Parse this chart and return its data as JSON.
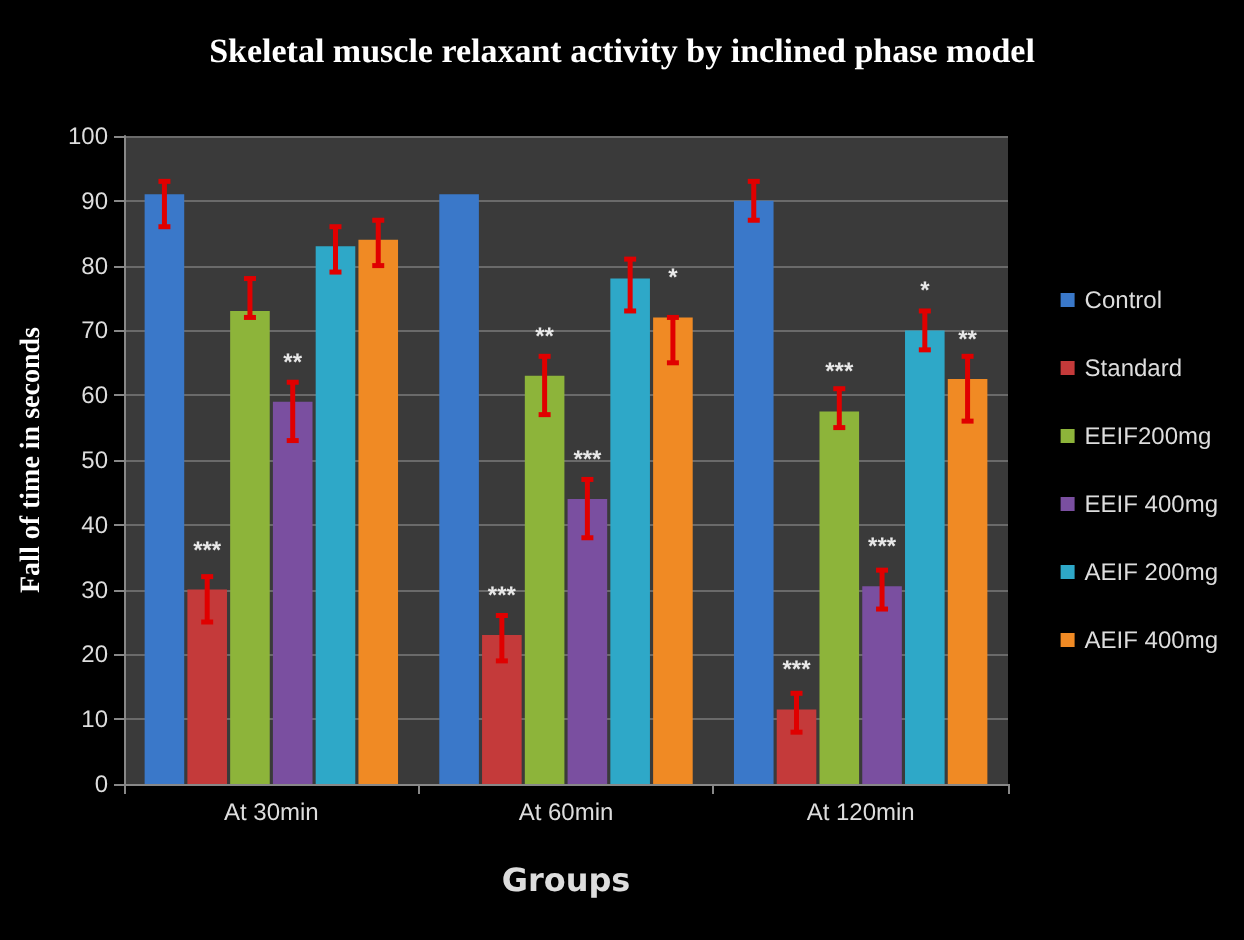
{
  "chart_data": {
    "type": "bar",
    "title": "Skeletal muscle relaxant activity by inclined phase model",
    "xlabel": "Groups",
    "ylabel": "Fall of time in seconds",
    "categories": [
      "At 30min",
      "At 60min",
      "At 120min"
    ],
    "series": [
      {
        "name": "Control",
        "color": "#3a78c9",
        "values": [
          91,
          91,
          90
        ],
        "errors": [
          [
            86,
            93
          ],
          null,
          [
            87,
            93
          ]
        ]
      },
      {
        "name": "Standard",
        "color": "#c43a3a",
        "values": [
          30,
          23,
          11.5
        ],
        "errors": [
          [
            25,
            32
          ],
          [
            19,
            26
          ],
          [
            8,
            14
          ]
        ],
        "value_labels": [
          "***",
          "***",
          "***"
        ]
      },
      {
        "name": "EEIF200mg",
        "color": "#8db43a",
        "values": [
          73,
          63,
          57.5
        ],
        "errors": [
          [
            72,
            78
          ],
          [
            57,
            66
          ],
          [
            55,
            61
          ]
        ],
        "value_labels": [
          null,
          "**",
          "***"
        ]
      },
      {
        "name": "EEIF 400mg",
        "color": "#7a4fa0",
        "values": [
          59,
          44,
          30.5
        ],
        "errors": [
          [
            53,
            62
          ],
          [
            38,
            47
          ],
          [
            27,
            33
          ]
        ],
        "value_labels": [
          "**",
          "***",
          "***"
        ]
      },
      {
        "name": "AEIF 200mg",
        "color": "#2ea8c8",
        "values": [
          83,
          78,
          70
        ],
        "errors": [
          [
            79,
            86
          ],
          [
            73,
            81
          ],
          [
            67,
            73
          ]
        ],
        "value_labels": [
          null,
          null,
          "*"
        ]
      },
      {
        "name": "AEIF 400mg",
        "color": "#f08a24",
        "values": [
          84,
          72,
          62.5
        ],
        "errors": [
          [
            80,
            87
          ],
          [
            65,
            72
          ],
          [
            56,
            66
          ]
        ],
        "value_labels": [
          null,
          "*",
          "**"
        ]
      }
    ],
    "ylim": [
      0,
      100
    ],
    "yticks": [
      0,
      10,
      20,
      30,
      40,
      50,
      60,
      70,
      80,
      90,
      100
    ],
    "grid": "y",
    "legend": "right"
  }
}
